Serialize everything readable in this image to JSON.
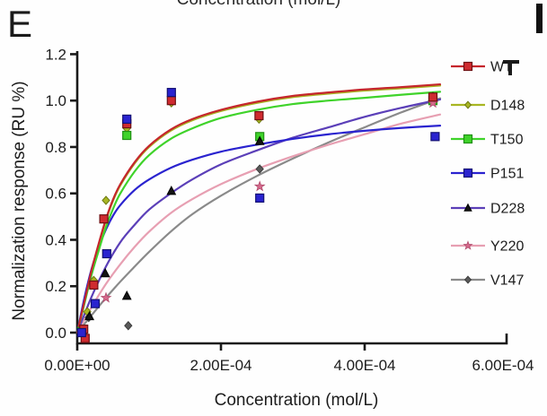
{
  "panel": {
    "label": "E",
    "adjacent_partial_letter": "F"
  },
  "top_cropped_text": "Concentration (mol/L)",
  "chart_data": {
    "type": "scatter",
    "title": "",
    "xlabel": "Concentration (mol/L)",
    "ylabel": "Normalization response (RU %)",
    "x_unit": "mol/L",
    "x_value_scale": "curve/point x values are in units of 1e-4 mol/L",
    "xlim": [
      0,
      0.0006
    ],
    "ylim": [
      -0.05,
      1.2
    ],
    "grid": false,
    "x_ticks": [
      {
        "value": 0,
        "label": "0.00E+00"
      },
      {
        "value": 2,
        "label": "2.00E-04"
      },
      {
        "value": 4,
        "label": "4.00E-04"
      },
      {
        "value": 6,
        "label": "6.00E-04"
      }
    ],
    "y_ticks": [
      {
        "value": 0.0,
        "label": "0.0"
      },
      {
        "value": 0.2,
        "label": "0.2"
      },
      {
        "value": 0.4,
        "label": "0.4"
      },
      {
        "value": 0.6,
        "label": "0.6"
      },
      {
        "value": 0.8,
        "label": "0.8"
      },
      {
        "value": 1.0,
        "label": "1.0"
      },
      {
        "value": 1.2,
        "label": "1.2"
      }
    ],
    "legend": {
      "position": "right",
      "entries": [
        "WT",
        "D148",
        "T150",
        "P151",
        "D228",
        "Y220",
        "V147"
      ]
    },
    "series": [
      {
        "name": "WT",
        "marker": "square",
        "line_color": "#c5262c",
        "marker_fill": "#cf2b30",
        "marker_edge": "#6e1013",
        "curve": [
          [
            0,
            0
          ],
          [
            0.1,
            0.135
          ],
          [
            0.2,
            0.27
          ],
          [
            0.3,
            0.385
          ],
          [
            0.4,
            0.49
          ],
          [
            0.5,
            0.575
          ],
          [
            0.6,
            0.64
          ],
          [
            0.8,
            0.735
          ],
          [
            1.0,
            0.805
          ],
          [
            1.3,
            0.875
          ],
          [
            1.6,
            0.92
          ],
          [
            2.0,
            0.96
          ],
          [
            2.5,
            0.995
          ],
          [
            3.0,
            1.02
          ],
          [
            3.5,
            1.035
          ],
          [
            4.0,
            1.048
          ],
          [
            4.5,
            1.058
          ],
          [
            5.05,
            1.07
          ]
        ],
        "points": [
          [
            0.09,
            0.015
          ],
          [
            0.11,
            -0.025
          ],
          [
            0.23,
            0.205
          ],
          [
            0.37,
            0.49
          ],
          [
            0.69,
            0.9
          ],
          [
            1.31,
            1.0
          ],
          [
            2.53,
            0.935
          ],
          [
            4.95,
            1.015
          ]
        ]
      },
      {
        "name": "D148",
        "marker": "diamond",
        "line_color": "#a8b623",
        "marker_fill": "#a8b623",
        "marker_edge": "#6e7a12",
        "curve": [
          [
            0,
            0
          ],
          [
            0.1,
            0.13
          ],
          [
            0.2,
            0.265
          ],
          [
            0.3,
            0.38
          ],
          [
            0.4,
            0.485
          ],
          [
            0.5,
            0.57
          ],
          [
            0.6,
            0.635
          ],
          [
            0.8,
            0.73
          ],
          [
            1.0,
            0.8
          ],
          [
            1.3,
            0.87
          ],
          [
            1.6,
            0.915
          ],
          [
            2.0,
            0.955
          ],
          [
            2.5,
            0.99
          ],
          [
            3.0,
            1.015
          ],
          [
            3.5,
            1.03
          ],
          [
            4.0,
            1.043
          ],
          [
            4.5,
            1.053
          ],
          [
            5.05,
            1.065
          ]
        ],
        "points": [
          [
            0.09,
            0.0
          ],
          [
            0.14,
            0.09
          ],
          [
            0.23,
            0.225
          ],
          [
            0.4,
            0.57
          ],
          [
            0.69,
            0.88
          ],
          [
            1.31,
            0.99
          ],
          [
            2.53,
            0.92
          ],
          [
            4.95,
            1.0
          ]
        ]
      },
      {
        "name": "T150",
        "marker": "square",
        "line_color": "#3fd32a",
        "marker_fill": "#3fd32a",
        "marker_edge": "#1f8f12",
        "curve": [
          [
            0,
            0
          ],
          [
            0.1,
            0.125
          ],
          [
            0.2,
            0.25
          ],
          [
            0.3,
            0.355
          ],
          [
            0.4,
            0.455
          ],
          [
            0.5,
            0.535
          ],
          [
            0.6,
            0.6
          ],
          [
            0.8,
            0.695
          ],
          [
            1.0,
            0.765
          ],
          [
            1.3,
            0.835
          ],
          [
            1.6,
            0.88
          ],
          [
            2.0,
            0.925
          ],
          [
            2.5,
            0.96
          ],
          [
            3.0,
            0.985
          ],
          [
            3.5,
            1.0
          ],
          [
            4.0,
            1.012
          ],
          [
            4.5,
            1.025
          ],
          [
            5.05,
            1.038
          ]
        ],
        "points": [
          [
            0.06,
            0.005
          ],
          [
            0.69,
            0.85
          ],
          [
            2.54,
            0.845
          ],
          [
            4.95,
            1.0
          ]
        ]
      },
      {
        "name": "P151",
        "marker": "square",
        "line_color": "#2a23cf",
        "marker_fill": "#2a23cf",
        "marker_edge": "#131173",
        "curve": [
          [
            0,
            0
          ],
          [
            0.1,
            0.15
          ],
          [
            0.2,
            0.275
          ],
          [
            0.3,
            0.37
          ],
          [
            0.4,
            0.445
          ],
          [
            0.5,
            0.505
          ],
          [
            0.6,
            0.55
          ],
          [
            0.8,
            0.615
          ],
          [
            1.0,
            0.66
          ],
          [
            1.3,
            0.71
          ],
          [
            1.6,
            0.745
          ],
          [
            2.0,
            0.78
          ],
          [
            2.5,
            0.81
          ],
          [
            3.0,
            0.835
          ],
          [
            3.5,
            0.855
          ],
          [
            4.0,
            0.87
          ],
          [
            4.5,
            0.882
          ],
          [
            5.05,
            0.892
          ]
        ],
        "points": [
          [
            0.06,
            0.0
          ],
          [
            0.25,
            0.125
          ],
          [
            0.41,
            0.34
          ],
          [
            0.69,
            0.92
          ],
          [
            1.31,
            1.035
          ],
          [
            2.54,
            0.58
          ],
          [
            4.98,
            0.845
          ]
        ]
      },
      {
        "name": "D228",
        "marker": "triangle",
        "line_color": "#5b3fb8",
        "marker_fill": "#141414",
        "marker_edge": "#000000",
        "curve": [
          [
            0,
            0
          ],
          [
            0.2,
            0.155
          ],
          [
            0.4,
            0.285
          ],
          [
            0.6,
            0.39
          ],
          [
            0.8,
            0.465
          ],
          [
            1.0,
            0.53
          ],
          [
            1.3,
            0.6
          ],
          [
            1.6,
            0.66
          ],
          [
            2.0,
            0.725
          ],
          [
            2.5,
            0.785
          ],
          [
            3.0,
            0.84
          ],
          [
            3.5,
            0.885
          ],
          [
            4.0,
            0.93
          ],
          [
            4.5,
            0.968
          ],
          [
            5.05,
            1.005
          ]
        ],
        "points": [
          [
            0.06,
            0.01
          ],
          [
            0.17,
            0.07
          ],
          [
            0.39,
            0.255
          ],
          [
            0.69,
            0.158
          ],
          [
            1.31,
            0.61
          ],
          [
            2.54,
            0.825
          ],
          [
            4.95,
            1.015
          ]
        ]
      },
      {
        "name": "Y220",
        "marker": "star",
        "line_color": "#e79fb2",
        "marker_fill": "#d66a8c",
        "marker_edge": "#b04a6c",
        "curve": [
          [
            0,
            0
          ],
          [
            0.2,
            0.11
          ],
          [
            0.4,
            0.21
          ],
          [
            0.6,
            0.295
          ],
          [
            0.8,
            0.37
          ],
          [
            1.0,
            0.435
          ],
          [
            1.3,
            0.515
          ],
          [
            1.6,
            0.575
          ],
          [
            2.0,
            0.64
          ],
          [
            2.5,
            0.705
          ],
          [
            3.0,
            0.76
          ],
          [
            3.5,
            0.81
          ],
          [
            4.0,
            0.855
          ],
          [
            4.5,
            0.9
          ],
          [
            5.05,
            0.94
          ]
        ],
        "points": [
          [
            0.07,
            0.0
          ],
          [
            0.4,
            0.15
          ],
          [
            2.54,
            0.63
          ],
          [
            4.95,
            0.99
          ]
        ]
      },
      {
        "name": "V147",
        "marker": "diamond",
        "line_color": "#8a8a8a",
        "marker_fill": "#5a5a5a",
        "marker_edge": "#3c3c3c",
        "curve": [
          [
            0,
            0
          ],
          [
            0.2,
            0.075
          ],
          [
            0.4,
            0.15
          ],
          [
            0.6,
            0.22
          ],
          [
            0.8,
            0.285
          ],
          [
            1.0,
            0.348
          ],
          [
            1.3,
            0.435
          ],
          [
            1.6,
            0.51
          ],
          [
            2.0,
            0.59
          ],
          [
            2.5,
            0.675
          ],
          [
            3.0,
            0.75
          ],
          [
            3.5,
            0.82
          ],
          [
            4.0,
            0.885
          ],
          [
            4.5,
            0.948
          ],
          [
            5.05,
            1.01
          ]
        ],
        "points": [
          [
            0.16,
            0.065
          ],
          [
            0.71,
            0.03
          ],
          [
            2.54,
            0.705
          ],
          [
            4.95,
            1.0
          ]
        ]
      }
    ],
    "axis_color": "#1a1a1a"
  }
}
